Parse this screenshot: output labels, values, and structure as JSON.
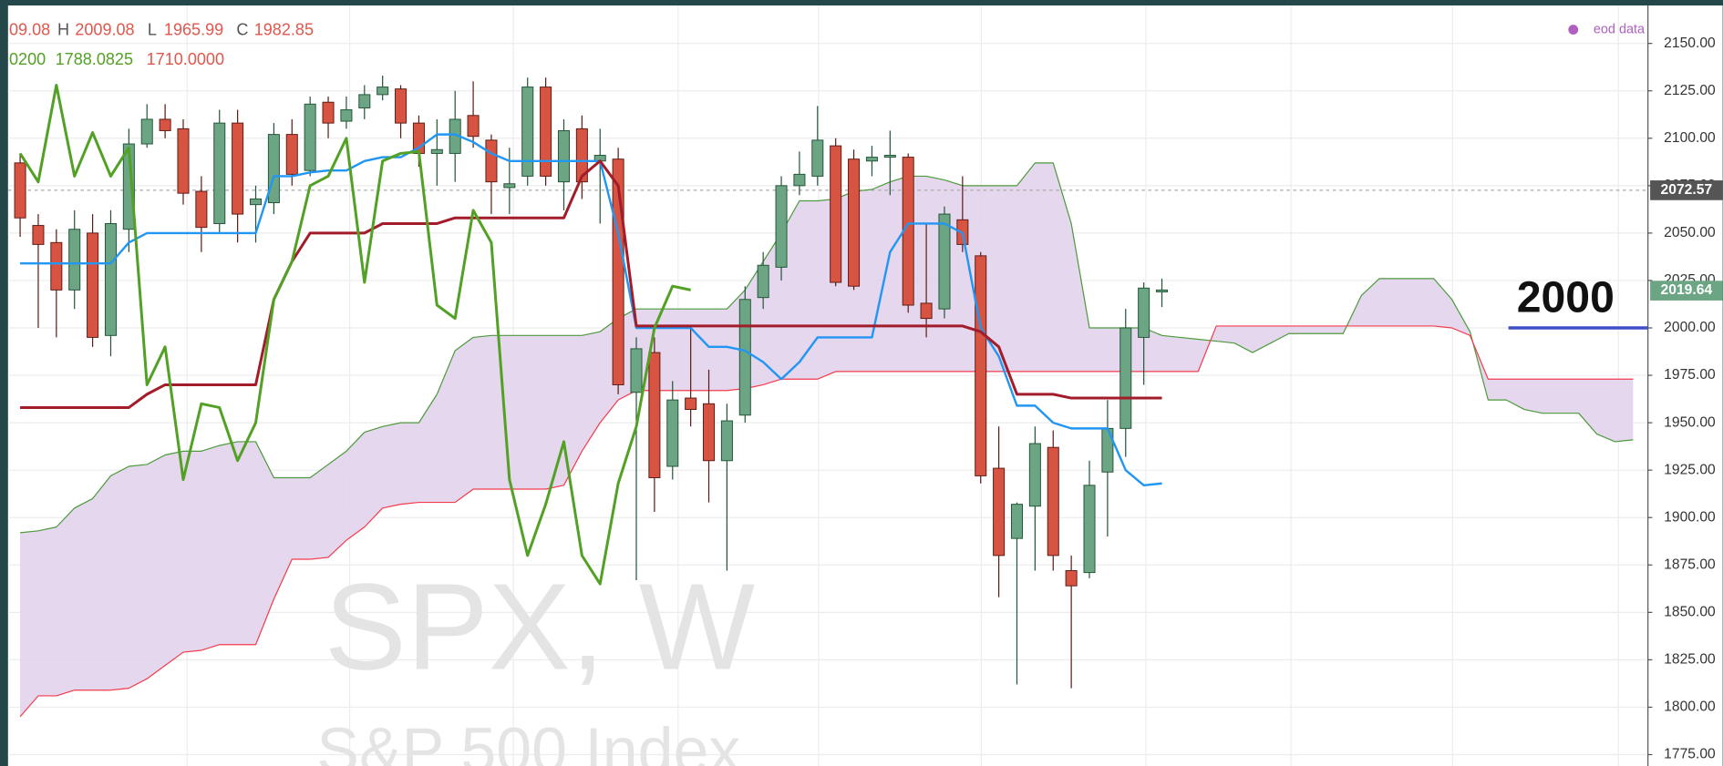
{
  "chart_data": {
    "type": "candlestick",
    "ohlc_legend": [
      "09.08",
      "H",
      "2009.08",
      "L",
      "1965.99",
      "C",
      "1982.85"
    ],
    "indicator_legend": [
      "0200",
      "1788.0825",
      "1710.0000"
    ],
    "source": "eod data",
    "watermark": [
      "SPX, W",
      "S&P 500 Index"
    ],
    "annotation": {
      "label": "2000",
      "value": 2000,
      "color": "#3f4fc7"
    },
    "price_lines": [
      {
        "value": 2072.57,
        "color": "#555555",
        "dashed": true
      },
      {
        "value": 2019.64,
        "color": "#6ba583"
      }
    ],
    "up_color": "#6ba583",
    "down_color": "#d75442",
    "up_border": "#225437",
    "down_border": "#5b1a13",
    "ylim": [
      1769,
      2170
    ],
    "yticks": [
      {
        "value": 1775,
        "label": "1775.00"
      },
      {
        "value": 1800,
        "label": "1800.00"
      },
      {
        "value": 1825,
        "label": "1825.00"
      },
      {
        "value": 1850,
        "label": "1850.00"
      },
      {
        "value": 1875,
        "label": "1875.00"
      },
      {
        "value": 1900,
        "label": "1900.00"
      },
      {
        "value": 1925,
        "label": "1925.00"
      },
      {
        "value": 1950,
        "label": "1950.00"
      },
      {
        "value": 1975,
        "label": "1975.00"
      },
      {
        "value": 2000,
        "label": "2000.00"
      },
      {
        "value": 2025,
        "label": "2025.00"
      },
      {
        "value": 2050,
        "label": "2050.00"
      },
      {
        "value": 2075,
        "label": "2075.00"
      },
      {
        "value": 2100,
        "label": "2100.00"
      },
      {
        "value": 2125,
        "label": "2125.00"
      },
      {
        "value": 2150,
        "label": "2150.00"
      }
    ],
    "grid": true,
    "categories": [
      null,
      null,
      null,
      null,
      null,
      null,
      null,
      null,
      null,
      null,
      null,
      null,
      null,
      null,
      null,
      null,
      null,
      null,
      null,
      null,
      null,
      null,
      null,
      null,
      null,
      null,
      null,
      null,
      null,
      null,
      null,
      null,
      null,
      null,
      null,
      null,
      null,
      null,
      null,
      null,
      null,
      null,
      null,
      null,
      null,
      null,
      null,
      null,
      null,
      null,
      null,
      null,
      null,
      null,
      null,
      null,
      null,
      null,
      null,
      null,
      null,
      null,
      null,
      null,
      null,
      null,
      null,
      null,
      null,
      null,
      null,
      null,
      null,
      null,
      null,
      null,
      null,
      null,
      null,
      null,
      null,
      null,
      null,
      null,
      null,
      null,
      null,
      null,
      null,
      null
    ],
    "open": [
      2087,
      2054,
      2045,
      2020,
      2050,
      1996,
      2052,
      2097,
      2110,
      2105,
      2072,
      2055,
      2108,
      2065,
      2066,
      2102,
      2083,
      2119,
      2109,
      2116,
      2123,
      2126,
      2108,
      2092,
      2092,
      2112,
      2099,
      2074,
      2080,
      2127,
      2077,
      2105,
      2088,
      2089,
      1966,
      1987,
      1927,
      1963,
      1960,
      1930,
      1954,
      2016,
      2032,
      2075,
      2080,
      2096,
      2089,
      2088,
      2090,
      2090,
      2013,
      2010,
      2057,
      2038,
      1926,
      1889,
      1906,
      1937,
      1872,
      1871,
      1924,
      1947,
      1995,
      2019,
      null,
      null,
      null,
      null,
      null,
      null,
      null,
      null,
      null,
      null,
      null,
      null,
      null,
      null,
      null,
      null,
      null,
      null,
      null,
      null,
      null,
      null,
      null,
      null,
      null,
      null
    ],
    "high": [
      2092,
      2060,
      2052,
      2062,
      2060,
      2062,
      2105,
      2118,
      2118,
      2110,
      2080,
      2115,
      2115,
      2075,
      2108,
      2110,
      2122,
      2122,
      2122,
      2128,
      2133,
      2128,
      2112,
      2110,
      2125,
      2130,
      2102,
      2095,
      2132,
      2132,
      2110,
      2112,
      2105,
      2095,
      1995,
      1995,
      1972,
      2000,
      1978,
      1960,
      2022,
      2040,
      2080,
      2093,
      2117,
      2100,
      2094,
      2096,
      2104,
      2092,
      2055,
      2064,
      2080,
      2040,
      1948,
      1908,
      1948,
      1946,
      1880,
      1930,
      1962,
      2010,
      2024,
      2026,
      null,
      null,
      null,
      null,
      null,
      null,
      null,
      null,
      null,
      null,
      null,
      null,
      null,
      null,
      null,
      null,
      null,
      null,
      null,
      null,
      null,
      null,
      null,
      null,
      null,
      null
    ],
    "low": [
      2048,
      2000,
      1995,
      2010,
      1990,
      1985,
      2040,
      2095,
      2100,
      2065,
      2040,
      2050,
      2045,
      2045,
      2060,
      2075,
      2080,
      2100,
      2105,
      2110,
      2120,
      2100,
      2085,
      2075,
      2077,
      2095,
      2060,
      2060,
      2075,
      2075,
      2062,
      2068,
      2055,
      1965,
      1867,
      1903,
      1920,
      1948,
      1908,
      1872,
      1950,
      2010,
      2025,
      2070,
      2075,
      2022,
      2020,
      2080,
      2070,
      2008,
      1995,
      2005,
      2040,
      1918,
      1858,
      1812,
      1872,
      1872,
      1810,
      1868,
      1890,
      1932,
      1970,
      2011,
      null,
      null,
      null,
      null,
      null,
      null,
      null,
      null,
      null,
      null,
      null,
      null,
      null,
      null,
      null,
      null,
      null,
      null,
      null,
      null,
      null,
      null,
      null,
      null,
      null,
      null
    ],
    "close": [
      2058,
      2044,
      2020,
      2052,
      1995,
      2055,
      2097,
      2110,
      2104,
      2071,
      2053,
      2108,
      2060,
      2068,
      2102,
      2081,
      2118,
      2108,
      2115,
      2123,
      2127,
      2108,
      2092,
      2094,
      2110,
      2101,
      2077,
      2076,
      2127,
      2080,
      2104,
      2077,
      2091,
      1970,
      1989,
      1921,
      1962,
      1957,
      1930,
      1951,
      2015,
      2033,
      2075,
      2081,
      2099,
      2024,
      2022,
      2090,
      2091,
      2012,
      2005,
      2060,
      2044,
      1922,
      1880,
      1907,
      1939,
      1880,
      1864,
      1917,
      1947,
      2000,
      2021,
      2020,
      null,
      null,
      null,
      null,
      null,
      null,
      null,
      null,
      null,
      null,
      null,
      null,
      null,
      null,
      null,
      null,
      null,
      null,
      null,
      null,
      null,
      null,
      null,
      null,
      null,
      null
    ],
    "lines": [
      {
        "color": "#2196f3",
        "width": 2,
        "values": [
          2034,
          2034,
          2034,
          2034,
          2034,
          2034,
          2045,
          2050,
          2050,
          2050,
          2050,
          2050,
          2050,
          2050,
          2080,
          2080,
          2082,
          2083,
          2083,
          2088,
          2090,
          2090,
          2095,
          2102,
          2102,
          2098,
          2092,
          2088,
          2088,
          2088,
          2088,
          2088,
          2088,
          2050,
          2000,
          2000,
          2000,
          2000,
          1990,
          1990,
          1988,
          1982,
          1973,
          1982,
          1995,
          1995,
          1995,
          1995,
          2040,
          2055,
          2055,
          2055,
          2050,
          2000,
          1985,
          1959,
          1959,
          1950,
          1947,
          1947,
          1947,
          1925,
          1917,
          1918,
          null,
          null,
          null,
          null,
          null,
          null,
          null,
          null,
          null,
          null,
          null,
          null,
          null,
          null,
          null,
          null,
          null,
          null,
          null,
          null,
          null,
          null
        ]
      },
      {
        "color": "#a31c2a",
        "width": 2.5,
        "values": [
          1958,
          1958,
          1958,
          1958,
          1958,
          1958,
          1958,
          1965,
          1970,
          1970,
          1970,
          1970,
          1970,
          1970,
          2015,
          2035,
          2050,
          2050,
          2050,
          2050,
          2055,
          2055,
          2055,
          2055,
          2058,
          2058,
          2058,
          2058,
          2058,
          2058,
          2058,
          2080,
          2088,
          2075,
          2001,
          2001,
          2001,
          2001,
          2001,
          2001,
          2001,
          2001,
          2001,
          2001,
          2001,
          2001,
          2001,
          2001,
          2001,
          2001,
          2001,
          2001,
          2001,
          1998,
          1990,
          1965,
          1965,
          1965,
          1963,
          1963,
          1963,
          1963,
          1963,
          1963,
          null,
          null,
          null,
          null,
          null,
          null,
          null,
          null,
          null,
          null,
          null,
          null,
          null,
          null,
          null,
          null,
          null,
          null,
          null,
          null,
          null,
          null
        ]
      },
      {
        "color": "#52a125",
        "width": 2.5,
        "values": [
          2092,
          2077,
          2128,
          2080,
          2103,
          2080,
          2095,
          1970,
          1990,
          1920,
          1960,
          1958,
          1930,
          1950,
          2015,
          2035,
          2075,
          2080,
          2100,
          2024,
          2088,
          2092,
          2093,
          2012,
          2005,
          2062,
          2045,
          1920,
          1880,
          1907,
          1940,
          1880,
          1865,
          1918,
          1948,
          2000,
          2022,
          2020,
          null,
          null,
          null,
          null,
          null,
          null,
          null,
          null,
          null,
          null,
          null,
          null,
          null,
          null,
          null,
          null,
          null,
          null,
          null,
          null,
          null,
          null,
          null,
          null,
          null,
          null,
          null,
          null,
          null,
          null,
          null,
          null,
          null,
          null,
          null,
          null,
          null,
          null,
          null,
          null,
          null,
          null,
          null,
          null,
          null,
          null,
          null,
          null,
          null,
          null,
          null,
          null
        ]
      },
      {
        "color": "#4c9a3c",
        "width": 1,
        "values": [
          1892,
          1893,
          1895,
          1905,
          1910,
          1922,
          1927,
          1928,
          1933,
          1935,
          1935,
          1938,
          1940,
          1940,
          1921,
          1921,
          1921,
          1928,
          1935,
          1945,
          1948,
          1950,
          1950,
          1965,
          1988,
          1995,
          1996,
          1996,
          1996,
          1996,
          1996,
          1996,
          1998,
          2005,
          2010,
          2010,
          2010,
          2010,
          2010,
          2010,
          2020,
          2035,
          2050,
          2067,
          2067,
          2068,
          2072,
          2073,
          2077,
          2080,
          2080,
          2078,
          2075,
          2075,
          2075,
          2075,
          2087,
          2087,
          2055,
          2000,
          2000,
          2000,
          2000,
          1996,
          1995,
          1994,
          1993,
          1992,
          1987,
          1992,
          1997,
          1997,
          1997,
          1997,
          2017,
          2026,
          2026,
          2026,
          2026,
          2015,
          1998,
          1962,
          1962,
          1957,
          1955,
          1955,
          1955,
          1944,
          1940,
          1941
        ]
      },
      {
        "color": "#f23c4c",
        "width": 1,
        "values": [
          1795,
          1806,
          1806,
          1809,
          1809,
          1809,
          1810,
          1815,
          1822,
          1829,
          1830,
          1833,
          1833,
          1833,
          1857,
          1878,
          1878,
          1879,
          1888,
          1895,
          1905,
          1907,
          1908,
          1908,
          1908,
          1915,
          1915,
          1915,
          1915,
          1915,
          1917,
          1935,
          1950,
          1962,
          1967,
          1967,
          1967,
          1967,
          1967,
          1967,
          1968,
          1970,
          1973,
          1973,
          1973,
          1977,
          1977,
          1977,
          1977,
          1977,
          1977,
          1977,
          1977,
          1977,
          1977,
          1977,
          1977,
          1977,
          1977,
          1977,
          1977,
          1977,
          1977,
          1977,
          1977,
          1977,
          2001,
          2001,
          2001,
          2001,
          2001,
          2001,
          2001,
          2001,
          2001,
          2001,
          2001,
          2001,
          2001,
          2000,
          1996,
          1973,
          1973,
          1973,
          1973,
          1973,
          1973,
          1973,
          1973,
          1973
        ]
      }
    ],
    "cloud_fill": {
      "color": "#e2d3ec",
      "between": [
        3,
        4
      ]
    }
  }
}
